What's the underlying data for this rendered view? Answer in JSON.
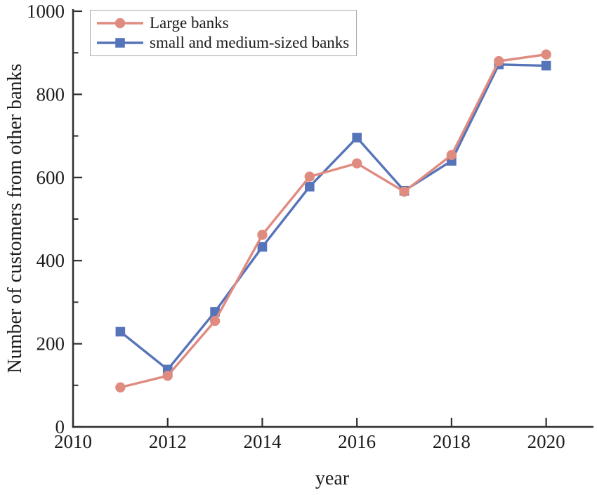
{
  "figure": {
    "background": "#ffffff",
    "axis_color": "#2f2f2f",
    "text_color": "#1c1c1c",
    "legend_border_color": "#ababab"
  },
  "chart_data": {
    "type": "line",
    "title": "",
    "xlabel": "year",
    "ylabel": "Number of customers from other banks",
    "x": [
      2011,
      2012,
      2013,
      2014,
      2015,
      2016,
      2017,
      2018,
      2019,
      2020
    ],
    "series": [
      {
        "name": "Large banks",
        "color": "#e08b80",
        "marker": "circle",
        "values": [
          95,
          123,
          255,
          462,
          602,
          634,
          566,
          654,
          880,
          896
        ]
      },
      {
        "name": "small and medium-sized banks",
        "color": "#5674b9",
        "marker": "square",
        "values": [
          229,
          138,
          277,
          433,
          578,
          696,
          568,
          640,
          872,
          869
        ]
      }
    ],
    "xlim": [
      2010,
      2021
    ],
    "ylim": [
      0,
      1000
    ],
    "x_ticks": [
      2010,
      2012,
      2014,
      2016,
      2018,
      2020
    ],
    "y_ticks": [
      0,
      200,
      400,
      600,
      800,
      1000
    ],
    "y_minor_ticks": [
      100,
      300,
      500,
      700,
      900
    ],
    "grid": false,
    "legend_position": "top-left",
    "tick_direction": "in"
  }
}
